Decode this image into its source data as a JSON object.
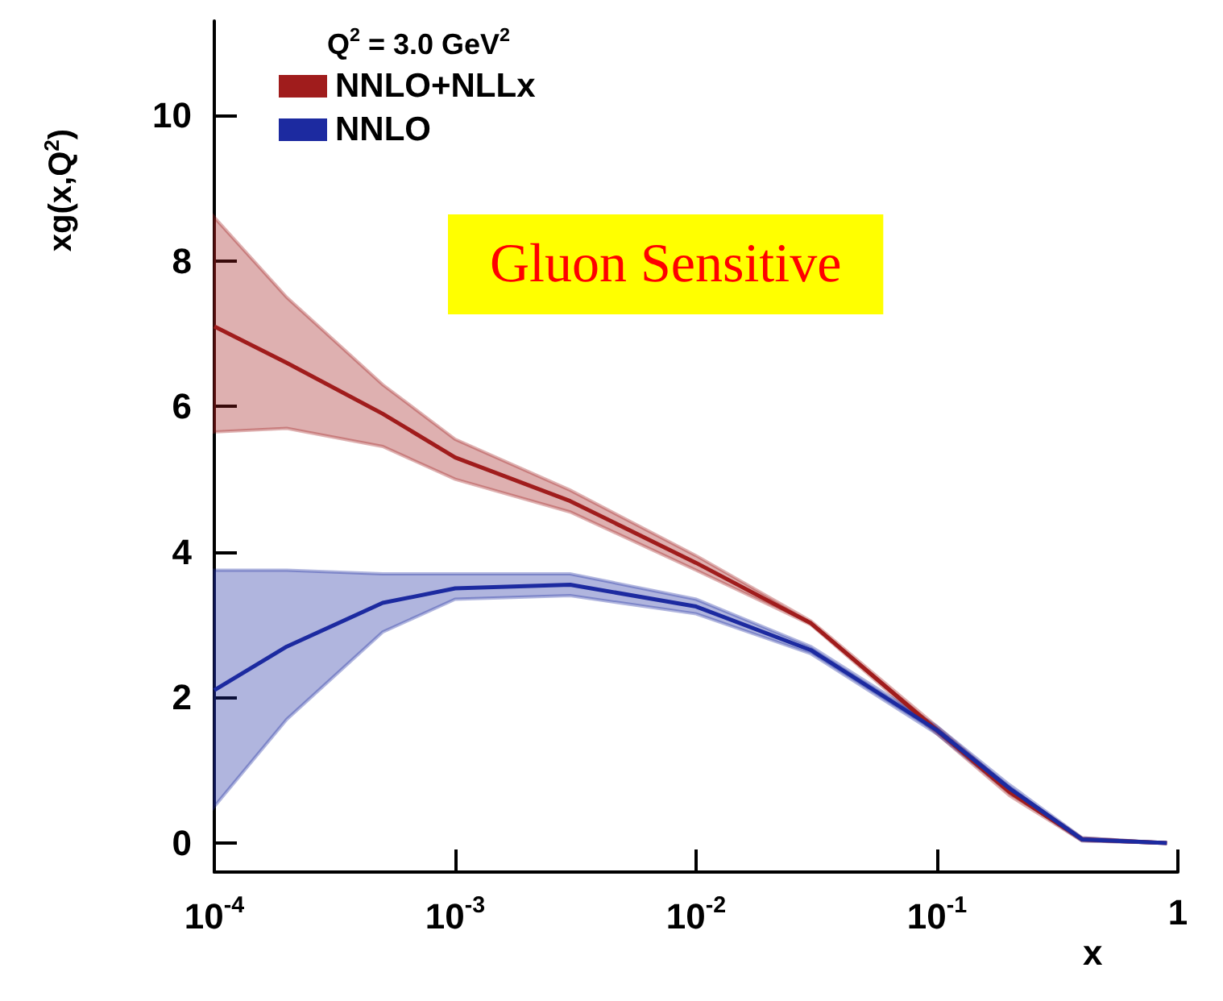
{
  "chart_data": {
    "type": "line",
    "title": null,
    "legend_title": "Q$^{2}$ = 3.0 GeV$^{2}$",
    "xlabel": "x",
    "ylabel": "xg(x,Q$^{2}$)",
    "log": "x",
    "x": [
      0.0001,
      0.0002,
      0.0005,
      0.001,
      0.003,
      0.01,
      0.03,
      0.1,
      0.2,
      0.4,
      0.9
    ],
    "series": [
      {
        "name": "NNLO+NLLx",
        "color": "#a01c1c",
        "values": [
          7.1,
          6.6,
          5.9,
          5.3,
          4.7,
          3.85,
          3.02,
          1.55,
          0.7,
          0.05,
          0
        ],
        "lower": [
          5.65,
          5.7,
          5.45,
          5.0,
          4.55,
          3.75,
          3.0,
          1.5,
          0.65,
          0.03,
          0
        ],
        "upper": [
          8.6,
          7.5,
          6.3,
          5.55,
          4.85,
          3.95,
          3.05,
          1.6,
          0.75,
          0.07,
          0
        ]
      },
      {
        "name": "NNLO",
        "color": "#1c2aa0",
        "values": [
          2.1,
          2.7,
          3.3,
          3.5,
          3.55,
          3.25,
          2.65,
          1.55,
          0.75,
          0.05,
          0
        ],
        "lower": [
          0.5,
          1.7,
          2.9,
          3.35,
          3.4,
          3.15,
          2.6,
          1.5,
          0.7,
          0.03,
          0
        ],
        "upper": [
          3.75,
          3.75,
          3.7,
          3.7,
          3.7,
          3.35,
          2.7,
          1.6,
          0.8,
          0.07,
          0
        ]
      }
    ],
    "xlim": [
      0.0001,
      1
    ],
    "xticks": [
      {
        "value": 0.0001,
        "label": "10$^{-4}$"
      },
      {
        "value": 0.001,
        "label": "10$^{-3}$"
      },
      {
        "value": 0.01,
        "label": "10$^{-2}$"
      },
      {
        "value": 0.1,
        "label": "10$^{-1}$"
      },
      1
    ],
    "ylim": [
      -0.4,
      11.3
    ],
    "yticks": [
      0,
      2,
      4,
      6,
      8,
      10
    ],
    "legend": "top left",
    "grid": false,
    "marker": "none",
    "line_style": "solid",
    "annotations": [
      "Gluon Sensitive"
    ]
  }
}
